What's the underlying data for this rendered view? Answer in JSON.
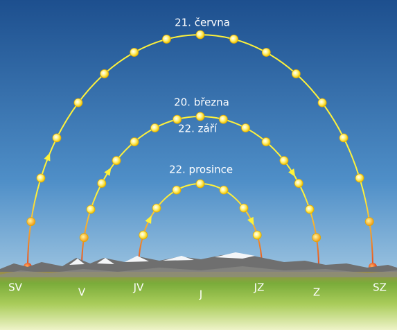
{
  "arcs": [
    {
      "labels": [
        "21. června"
      ]
    },
    {
      "labels": [
        "20. března",
        "22. září"
      ]
    },
    {
      "labels": [
        "22. prosince"
      ]
    }
  ],
  "directions": [
    "SV",
    "V",
    "JV",
    "J",
    "JZ",
    "Z",
    "SZ"
  ]
}
